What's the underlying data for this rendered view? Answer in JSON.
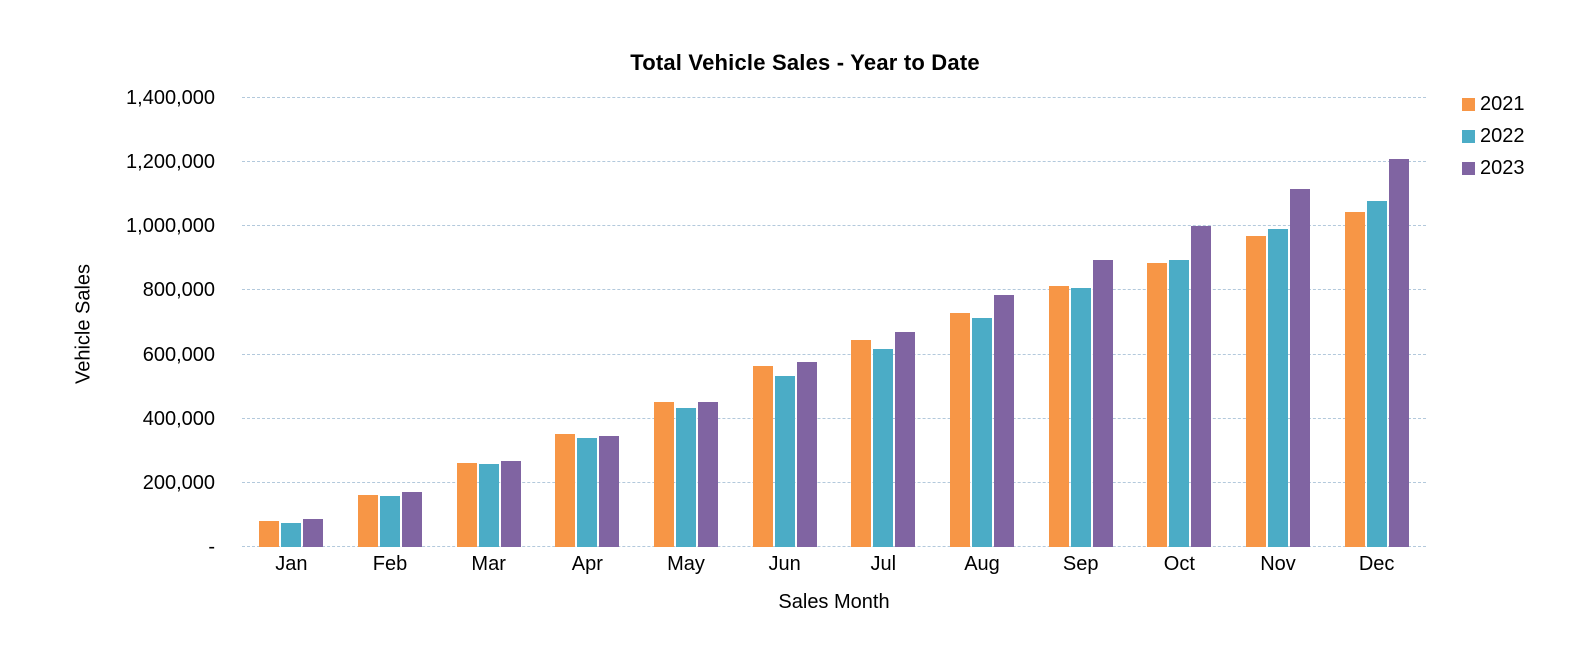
{
  "chart_data": {
    "type": "bar",
    "title": "Total Vehicle Sales - Year to Date",
    "xlabel": "Sales Month",
    "ylabel": "Vehicle Sales",
    "categories": [
      "Jan",
      "Feb",
      "Mar",
      "Apr",
      "May",
      "Jun",
      "Jul",
      "Aug",
      "Sep",
      "Oct",
      "Nov",
      "Dec"
    ],
    "series": [
      {
        "name": "2021",
        "color": "#F79646",
        "values": [
          80000,
          162000,
          261000,
          351000,
          453000,
          564000,
          645000,
          730000,
          815000,
          887000,
          969000,
          1046000
        ]
      },
      {
        "name": "2022",
        "color": "#4BACC6",
        "values": [
          76000,
          159000,
          259000,
          339000,
          434000,
          534000,
          616000,
          714000,
          808000,
          896000,
          991000,
          1078000
        ]
      },
      {
        "name": "2023",
        "color": "#8064A2",
        "values": [
          86000,
          170000,
          267000,
          346000,
          452000,
          578000,
          671000,
          785000,
          896000,
          1002000,
          1115000,
          1211000
        ]
      }
    ],
    "ylim": [
      0,
      1400000
    ],
    "ytick_interval": 200000,
    "ytick_labels": [
      "-",
      "200,000",
      "400,000",
      "600,000",
      "800,000",
      "1,000,000",
      "1,200,000",
      "1,400,000"
    ],
    "zero_tick_label": "-",
    "grid": true,
    "gridline_color": "#b3c9dc",
    "legend_position": "top-right",
    "legend": [
      "2021",
      "2022",
      "2023"
    ]
  }
}
